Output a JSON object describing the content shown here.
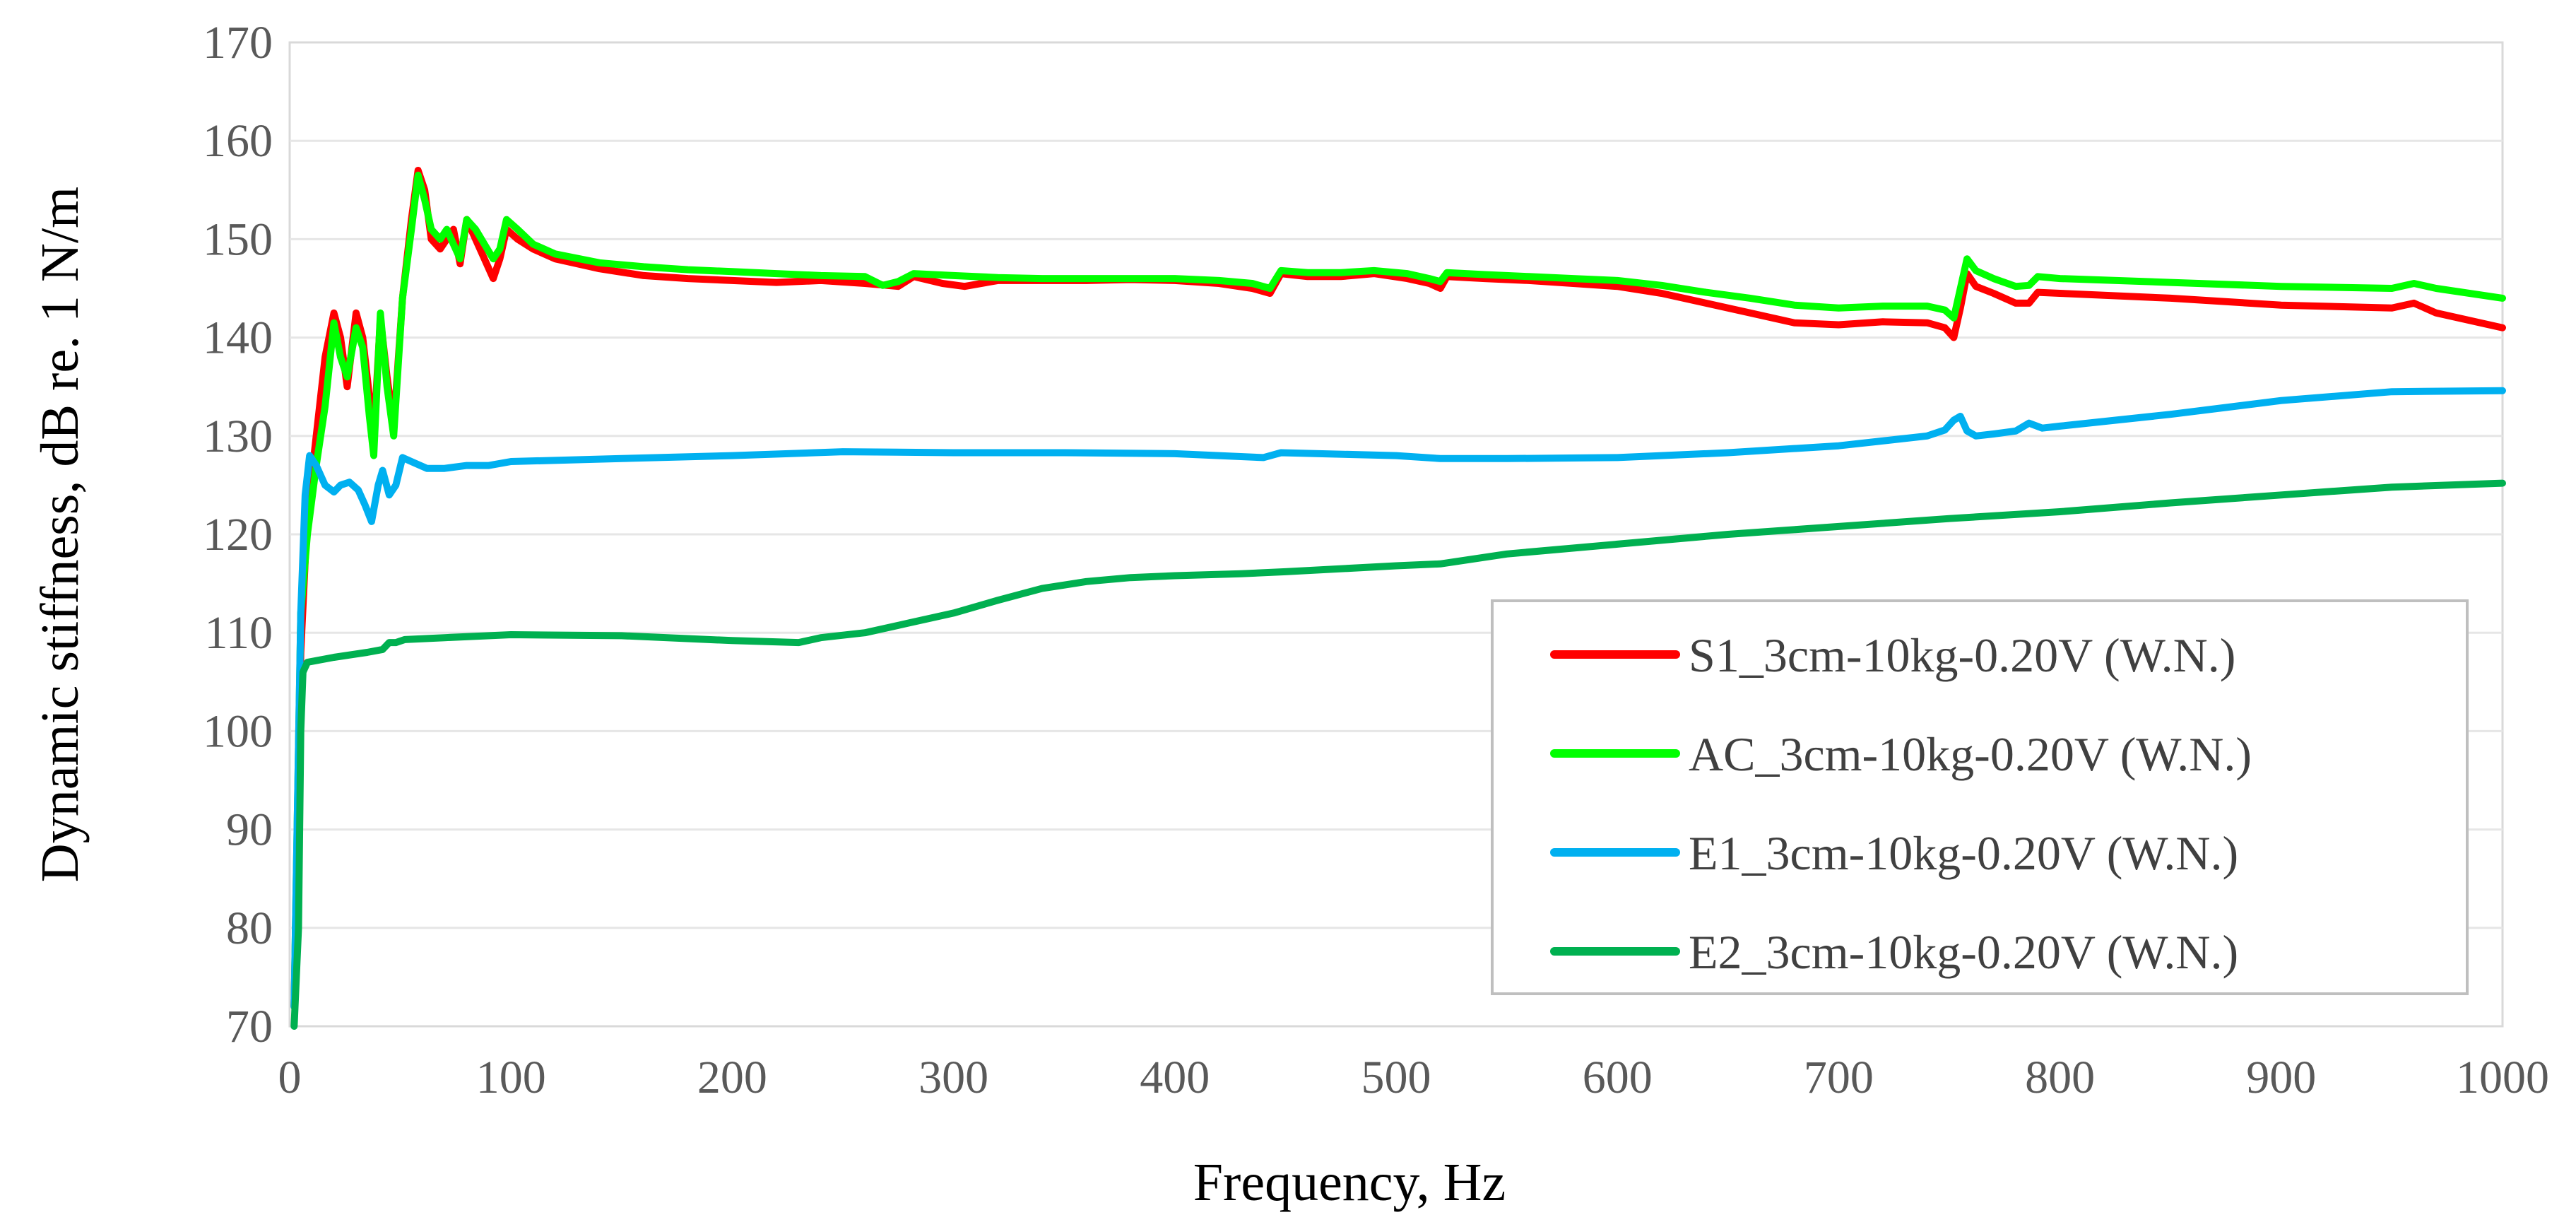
{
  "chart_data": {
    "type": "line",
    "title": "",
    "xlabel": "Frequency, Hz",
    "ylabel": "Dynamic stiffness, dB re. 1 N/m",
    "xlim": [
      0,
      1000
    ],
    "ylim": [
      70,
      170
    ],
    "xticks": [
      "0",
      "100",
      "200",
      "300",
      "400",
      "500",
      "600",
      "700",
      "800",
      "900",
      "1000"
    ],
    "yticks": [
      "70",
      "80",
      "90",
      "100",
      "110",
      "120",
      "130",
      "140",
      "150",
      "160",
      "170"
    ],
    "grid": "horizontal",
    "legend_position": "bottom-right",
    "series": [
      {
        "name": "S1_3cm-10kg-0.20V (W.N.)",
        "color": "#ff0000",
        "points": [
          [
            2,
            72
          ],
          [
            5,
            108
          ],
          [
            8,
            122
          ],
          [
            12,
            130
          ],
          [
            16,
            138
          ],
          [
            20,
            142.5
          ],
          [
            23,
            140
          ],
          [
            26,
            135
          ],
          [
            30,
            142.5
          ],
          [
            33,
            140
          ],
          [
            36,
            134
          ],
          [
            38,
            130
          ],
          [
            41,
            142
          ],
          [
            44,
            136
          ],
          [
            47,
            131
          ],
          [
            51,
            144
          ],
          [
            55,
            152
          ],
          [
            58,
            157
          ],
          [
            61,
            155
          ],
          [
            64,
            150
          ],
          [
            68,
            149
          ],
          [
            71,
            150
          ],
          [
            74,
            151
          ],
          [
            77,
            147.5
          ],
          [
            80,
            152
          ],
          [
            84,
            150
          ],
          [
            88,
            148
          ],
          [
            92,
            146
          ],
          [
            95,
            148
          ],
          [
            98,
            151
          ],
          [
            103,
            150
          ],
          [
            110,
            149
          ],
          [
            120,
            148
          ],
          [
            140,
            147
          ],
          [
            160,
            146.3
          ],
          [
            180,
            146
          ],
          [
            200,
            145.8
          ],
          [
            220,
            145.6
          ],
          [
            240,
            145.8
          ],
          [
            260,
            145.5
          ],
          [
            275,
            145.2
          ],
          [
            282,
            146.2
          ],
          [
            295,
            145.5
          ],
          [
            305,
            145.2
          ],
          [
            320,
            145.8
          ],
          [
            340,
            145.8
          ],
          [
            360,
            145.8
          ],
          [
            380,
            145.9
          ],
          [
            400,
            145.8
          ],
          [
            420,
            145.5
          ],
          [
            435,
            145
          ],
          [
            443,
            144.5
          ],
          [
            448,
            146.5
          ],
          [
            460,
            146.2
          ],
          [
            475,
            146.2
          ],
          [
            490,
            146.5
          ],
          [
            505,
            146
          ],
          [
            515,
            145.5
          ],
          [
            520,
            145
          ],
          [
            523,
            146.2
          ],
          [
            540,
            146
          ],
          [
            560,
            145.8
          ],
          [
            580,
            145.5
          ],
          [
            600,
            145.2
          ],
          [
            620,
            144.5
          ],
          [
            640,
            143.5
          ],
          [
            660,
            142.5
          ],
          [
            680,
            141.5
          ],
          [
            700,
            141.3
          ],
          [
            720,
            141.6
          ],
          [
            740,
            141.5
          ],
          [
            748,
            141
          ],
          [
            752,
            140
          ],
          [
            755,
            143
          ],
          [
            758,
            146.5
          ],
          [
            762,
            145.2
          ],
          [
            770,
            144.5
          ],
          [
            780,
            143.5
          ],
          [
            786,
            143.5
          ],
          [
            790,
            144.6
          ],
          [
            800,
            144.5
          ],
          [
            850,
            144
          ],
          [
            900,
            143.3
          ],
          [
            950,
            143
          ],
          [
            960,
            143.5
          ],
          [
            970,
            142.5
          ],
          [
            1000,
            141
          ]
        ]
      },
      {
        "name": "AC_3cm-10kg-0.20V (W.N.)",
        "color": "#00ff00",
        "points": [
          [
            2,
            72
          ],
          [
            5,
            112
          ],
          [
            8,
            120
          ],
          [
            12,
            127
          ],
          [
            16,
            133
          ],
          [
            20,
            141.5
          ],
          [
            23,
            138
          ],
          [
            26,
            136
          ],
          [
            30,
            141
          ],
          [
            33,
            139
          ],
          [
            36,
            132
          ],
          [
            38,
            128
          ],
          [
            41,
            142.5
          ],
          [
            44,
            135
          ],
          [
            47,
            130
          ],
          [
            51,
            144
          ],
          [
            55,
            151
          ],
          [
            58,
            156.5
          ],
          [
            61,
            154
          ],
          [
            64,
            151
          ],
          [
            68,
            150
          ],
          [
            71,
            151
          ],
          [
            74,
            149.5
          ],
          [
            77,
            148
          ],
          [
            80,
            152
          ],
          [
            84,
            151
          ],
          [
            88,
            149.5
          ],
          [
            92,
            148
          ],
          [
            95,
            149
          ],
          [
            98,
            152
          ],
          [
            103,
            151
          ],
          [
            110,
            149.5
          ],
          [
            120,
            148.5
          ],
          [
            140,
            147.6
          ],
          [
            160,
            147.2
          ],
          [
            180,
            146.9
          ],
          [
            200,
            146.7
          ],
          [
            220,
            146.5
          ],
          [
            240,
            146.3
          ],
          [
            260,
            146.2
          ],
          [
            268,
            145.3
          ],
          [
            275,
            145.7
          ],
          [
            282,
            146.5
          ],
          [
            300,
            146.3
          ],
          [
            320,
            146.1
          ],
          [
            340,
            146
          ],
          [
            360,
            146
          ],
          [
            380,
            146
          ],
          [
            400,
            146
          ],
          [
            420,
            145.8
          ],
          [
            435,
            145.5
          ],
          [
            443,
            145
          ],
          [
            448,
            146.8
          ],
          [
            460,
            146.6
          ],
          [
            475,
            146.6
          ],
          [
            490,
            146.8
          ],
          [
            505,
            146.5
          ],
          [
            515,
            146
          ],
          [
            520,
            145.7
          ],
          [
            523,
            146.6
          ],
          [
            540,
            146.4
          ],
          [
            560,
            146.2
          ],
          [
            580,
            146
          ],
          [
            600,
            145.8
          ],
          [
            620,
            145.3
          ],
          [
            640,
            144.6
          ],
          [
            660,
            144
          ],
          [
            680,
            143.3
          ],
          [
            700,
            143
          ],
          [
            720,
            143.2
          ],
          [
            740,
            143.2
          ],
          [
            748,
            142.8
          ],
          [
            752,
            142
          ],
          [
            755,
            145
          ],
          [
            758,
            148
          ],
          [
            762,
            146.8
          ],
          [
            770,
            146
          ],
          [
            780,
            145.2
          ],
          [
            786,
            145.3
          ],
          [
            790,
            146.2
          ],
          [
            800,
            146
          ],
          [
            850,
            145.6
          ],
          [
            900,
            145.2
          ],
          [
            950,
            145
          ],
          [
            960,
            145.5
          ],
          [
            970,
            145
          ],
          [
            1000,
            144
          ]
        ]
      },
      {
        "name": "E1_3cm-10kg-0.20V (W.N.)",
        "color": "#00b0f0",
        "points": [
          [
            2,
            72
          ],
          [
            5,
            112
          ],
          [
            7,
            124
          ],
          [
            9,
            128
          ],
          [
            12,
            127
          ],
          [
            16,
            125
          ],
          [
            20,
            124.3
          ],
          [
            23,
            125
          ],
          [
            27,
            125.3
          ],
          [
            31,
            124.5
          ],
          [
            34,
            123
          ],
          [
            37,
            121.3
          ],
          [
            40,
            125
          ],
          [
            42,
            126.5
          ],
          [
            45,
            124
          ],
          [
            48,
            125
          ],
          [
            51,
            127.8
          ],
          [
            56,
            127.3
          ],
          [
            62,
            126.7
          ],
          [
            70,
            126.7
          ],
          [
            80,
            127
          ],
          [
            90,
            127
          ],
          [
            100,
            127.4
          ],
          [
            150,
            127.7
          ],
          [
            200,
            128
          ],
          [
            250,
            128.4
          ],
          [
            300,
            128.3
          ],
          [
            350,
            128.3
          ],
          [
            400,
            128.2
          ],
          [
            440,
            127.8
          ],
          [
            448,
            128.3
          ],
          [
            500,
            128
          ],
          [
            520,
            127.7
          ],
          [
            550,
            127.7
          ],
          [
            600,
            127.8
          ],
          [
            650,
            128.3
          ],
          [
            700,
            129
          ],
          [
            740,
            130
          ],
          [
            748,
            130.6
          ],
          [
            752,
            131.6
          ],
          [
            755,
            132
          ],
          [
            758,
            130.5
          ],
          [
            762,
            130
          ],
          [
            770,
            130.2
          ],
          [
            780,
            130.5
          ],
          [
            786,
            131.3
          ],
          [
            792,
            130.8
          ],
          [
            800,
            131
          ],
          [
            850,
            132.2
          ],
          [
            900,
            133.6
          ],
          [
            950,
            134.5
          ],
          [
            1000,
            134.6
          ]
        ]
      },
      {
        "name": "E2_3cm-10kg-0.20V (W.N.)",
        "color": "#00b050",
        "points": [
          [
            2,
            70
          ],
          [
            4,
            80
          ],
          [
            5,
            100
          ],
          [
            6,
            106
          ],
          [
            8,
            107
          ],
          [
            20,
            107.5
          ],
          [
            35,
            108
          ],
          [
            42,
            108.3
          ],
          [
            45,
            109
          ],
          [
            48,
            109
          ],
          [
            52,
            109.3
          ],
          [
            70,
            109.5
          ],
          [
            100,
            109.8
          ],
          [
            150,
            109.7
          ],
          [
            200,
            109.2
          ],
          [
            230,
            109
          ],
          [
            240,
            109.5
          ],
          [
            260,
            110
          ],
          [
            280,
            111
          ],
          [
            300,
            112
          ],
          [
            320,
            113.3
          ],
          [
            340,
            114.5
          ],
          [
            360,
            115.2
          ],
          [
            380,
            115.6
          ],
          [
            400,
            115.8
          ],
          [
            430,
            116
          ],
          [
            450,
            116.2
          ],
          [
            500,
            116.8
          ],
          [
            520,
            117
          ],
          [
            550,
            118
          ],
          [
            600,
            119
          ],
          [
            650,
            120
          ],
          [
            700,
            120.8
          ],
          [
            750,
            121.6
          ],
          [
            800,
            122.3
          ],
          [
            850,
            123.2
          ],
          [
            900,
            124
          ],
          [
            950,
            124.8
          ],
          [
            1000,
            125.2
          ]
        ]
      }
    ]
  }
}
